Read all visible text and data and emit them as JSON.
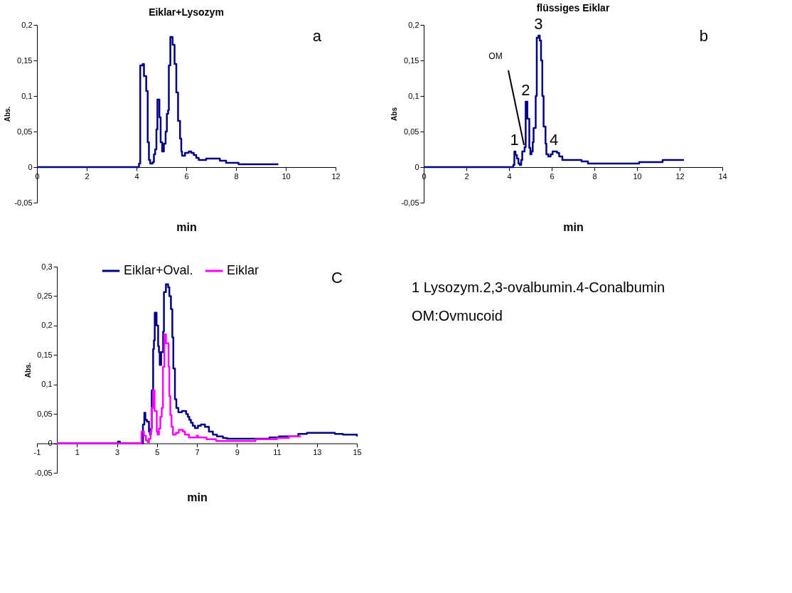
{
  "chart_data": [
    {
      "type": "step",
      "title": "Eiklar+Lysozym",
      "xlabel": "min",
      "ylabel": "Abs.",
      "annotations": [
        "a"
      ],
      "xlim": [
        0,
        12
      ],
      "xticks": [
        0,
        2,
        4,
        6,
        8,
        10,
        12
      ],
      "ylim": [
        -0.05,
        0.2
      ],
      "yticks": [
        {
          "value": -0.05,
          "label": "-0,05"
        },
        {
          "value": 0,
          "label": "0"
        },
        {
          "value": 0.05,
          "label": "0,05"
        },
        {
          "value": 0.1,
          "label": "0,1"
        },
        {
          "value": 0.15,
          "label": "0,15"
        },
        {
          "value": 0.2,
          "label": "0,2"
        }
      ],
      "series": [
        {
          "color": "#000080",
          "x": [
            0,
            4.1,
            4.15,
            4.25,
            4.3,
            4.39,
            4.45,
            4.5,
            4.55,
            4.65,
            4.7,
            4.75,
            4.8,
            4.84,
            4.92,
            4.97,
            5.03,
            5.1,
            5.17,
            5.22,
            5.27,
            5.3,
            5.36,
            5.45,
            5.53,
            5.6,
            5.67,
            5.75,
            5.8,
            5.83,
            5.95,
            6.1,
            6.2,
            6.3,
            6.4,
            6.5,
            6.8,
            7.35,
            7.6,
            8.1,
            9.7
          ],
          "values": [
            0,
            0.005,
            0.143,
            0.145,
            0.128,
            0.107,
            0.035,
            0.01,
            0.005,
            0.007,
            0.018,
            0.025,
            0.053,
            0.095,
            0.07,
            0.035,
            0.022,
            0.033,
            0.05,
            0.075,
            0.08,
            0.143,
            0.183,
            0.172,
            0.145,
            0.105,
            0.065,
            0.04,
            0.022,
            0.016,
            0.02,
            0.022,
            0.02,
            0.017,
            0.013,
            0.01,
            0.012,
            0.009,
            0.006,
            0.004,
            0.004
          ]
        }
      ]
    },
    {
      "type": "step",
      "title": "flüssiges Eiklar",
      "xlabel": "min",
      "ylabel": "Abs",
      "annotations": [
        "b",
        {
          "text": "OM",
          "x": 4.7,
          "y": 0.031
        },
        {
          "text": "1",
          "x": 4.25,
          "y": 0.022
        },
        {
          "text": "2",
          "x": 4.78,
          "y": 0.092
        },
        {
          "text": "3",
          "x": 5.38,
          "y": 0.185
        },
        {
          "text": "4",
          "x": 6.1,
          "y": 0.022
        }
      ],
      "xlim": [
        0,
        14
      ],
      "xticks": [
        0,
        2,
        4,
        6,
        8,
        10,
        12,
        14
      ],
      "ylim": [
        -0.05,
        0.2
      ],
      "yticks": [
        {
          "value": -0.05,
          "label": "-0,05"
        },
        {
          "value": 0,
          "label": "0"
        },
        {
          "value": 0.05,
          "label": "0,05"
        },
        {
          "value": 0.1,
          "label": "0,1"
        },
        {
          "value": 0.15,
          "label": "0,15"
        },
        {
          "value": 0.2,
          "label": "0,2"
        }
      ],
      "series": [
        {
          "color": "#000080",
          "x": [
            0,
            4.2,
            4.25,
            4.3,
            4.37,
            4.44,
            4.5,
            4.57,
            4.62,
            4.73,
            4.78,
            4.86,
            4.95,
            5.0,
            5.05,
            5.11,
            5.15,
            5.25,
            5.3,
            5.38,
            5.44,
            5.5,
            5.56,
            5.62,
            5.71,
            5.75,
            5.84,
            5.95,
            6.04,
            6.25,
            6.35,
            6.5,
            7.4,
            7.7,
            10.1,
            11.2,
            12.2
          ],
          "values": [
            0,
            0.003,
            0.022,
            0.017,
            0.012,
            0.005,
            0.003,
            0.01,
            0.022,
            0.028,
            0.092,
            0.068,
            0.027,
            0.018,
            0.022,
            0.035,
            0.055,
            0.1,
            0.182,
            0.185,
            0.178,
            0.15,
            0.1,
            0.057,
            0.033,
            0.018,
            0.015,
            0.018,
            0.022,
            0.02,
            0.015,
            0.01,
            0.008,
            0.005,
            0.007,
            0.01,
            0.01
          ]
        }
      ]
    },
    {
      "type": "step",
      "xlabel": "min",
      "ylabel": "Abs.",
      "annotations": [
        "C"
      ],
      "legend": "top",
      "xlim": [
        -1,
        15
      ],
      "xticks": [
        -1,
        1,
        3,
        5,
        7,
        9,
        11,
        13,
        15
      ],
      "ylim": [
        -0.05,
        0.3
      ],
      "yticks": [
        {
          "value": -0.05,
          "label": "-0,05"
        },
        {
          "value": 0,
          "label": "0"
        },
        {
          "value": 0.05,
          "label": "0,05"
        },
        {
          "value": 0.1,
          "label": "0,1"
        },
        {
          "value": 0.15,
          "label": "0,15"
        },
        {
          "value": 0.2,
          "label": "0,2"
        },
        {
          "value": 0.25,
          "label": "0,25"
        },
        {
          "value": 0.3,
          "label": "0,3"
        }
      ],
      "series": [
        {
          "name": "Eiklar+Oval.",
          "color": "#000080",
          "x": [
            0,
            3.05,
            3.15,
            4.3,
            4.37,
            4.42,
            4.5,
            4.6,
            4.65,
            4.7,
            4.74,
            4.81,
            4.85,
            4.89,
            4.98,
            5.06,
            5.1,
            5.14,
            5.21,
            5.31,
            5.35,
            5.45,
            5.56,
            5.62,
            5.7,
            5.77,
            5.82,
            5.9,
            5.97,
            6.07,
            6.25,
            6.46,
            6.55,
            6.62,
            6.7,
            6.79,
            6.9,
            7.05,
            7.2,
            7.4,
            7.6,
            7.8,
            8.0,
            8.3,
            8.5,
            10.63,
            11.1,
            12.07,
            12.5,
            13.9,
            14.3,
            15
          ],
          "values": [
            0,
            0.003,
            0,
            0.032,
            0.052,
            0.04,
            0.037,
            0.02,
            0.015,
            0.025,
            0.09,
            0.16,
            0.175,
            0.222,
            0.2,
            0.165,
            0.155,
            0.133,
            0.155,
            0.19,
            0.257,
            0.27,
            0.265,
            0.25,
            0.228,
            0.18,
            0.127,
            0.075,
            0.06,
            0.053,
            0.055,
            0.05,
            0.045,
            0.04,
            0.035,
            0.03,
            0.026,
            0.03,
            0.032,
            0.028,
            0.02,
            0.015,
            0.012,
            0.009,
            0.008,
            0.01,
            0.012,
            0.016,
            0.018,
            0.016,
            0.015,
            0.012
          ]
        },
        {
          "name": "Eiklar",
          "color": "#ff00ff",
          "x": [
            0,
            4.23,
            4.35,
            4.45,
            4.55,
            4.6,
            4.68,
            4.73,
            4.81,
            4.88,
            4.99,
            5.03,
            5.1,
            5.17,
            5.24,
            5.3,
            5.37,
            5.45,
            5.58,
            5.62,
            5.67,
            5.73,
            5.8,
            5.95,
            6.09,
            6.3,
            6.4,
            6.6,
            6.99,
            7.05,
            7.48,
            7.96,
            9.93,
            11.0,
            11.6,
            12.2
          ],
          "values": [
            0,
            0.02,
            0.013,
            0.005,
            0.002,
            0.008,
            0.02,
            0.06,
            0.09,
            0.055,
            0.02,
            0.015,
            0.025,
            0.045,
            0.06,
            0.13,
            0.185,
            0.17,
            0.13,
            0.08,
            0.048,
            0.028,
            0.015,
            0.018,
            0.023,
            0.02,
            0.015,
            0.01,
            0.013,
            0.01,
            0.007,
            0.004,
            0.007,
            0.009,
            0.012,
            0.012
          ]
        }
      ]
    },
    {
      "type": "other",
      "annotations": [
        "1 Lysozym.2,3-ovalbumin.4-Conalbumin",
        "OM:Ovmucoid"
      ]
    }
  ]
}
